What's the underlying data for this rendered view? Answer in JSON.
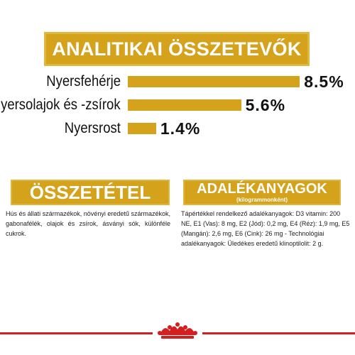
{
  "header": {
    "title": "ANALITIKAI ÖSSZETEVŐK"
  },
  "chart_data": {
    "type": "bar",
    "categories": [
      "Nyersfehérje",
      "Nyersolajok és -zsírok",
      "Nyersrost"
    ],
    "values": [
      8.5,
      5.6,
      1.4
    ],
    "value_labels": [
      "8.5%",
      "5.6%",
      "1.4%"
    ],
    "unit": "%",
    "orientation": "horizontal",
    "bar_color": "#d4a21b",
    "grid": false
  },
  "composition": {
    "title": "ÖSSZETÉTEL",
    "text": "Hús és állati származékok, növényi eredetű származékok, gabonafélék, olajok és zsírok, ásványi sók, különféle cukrok."
  },
  "additives": {
    "title": "ADALÉKANYAGOK",
    "subtitle": "(kilogrammonként)",
    "text": "Tápértékkel rendelkező adalékanyagok: D3 vitamin: 200 NE, E1 (Vas): 8 mg, E2 (Jód): 0,2 mg, E4 (Réz): 1,9 mg, E5 (Mangán): 2,6 mg, E6 (Cink): 26 mg - Technológiai adalékanyagok: Üledékes eredetű klinoptilolit: 2 g."
  },
  "footer": {
    "logo": "royal-canin-crown-logo",
    "accent_color": "#d21f1f"
  }
}
